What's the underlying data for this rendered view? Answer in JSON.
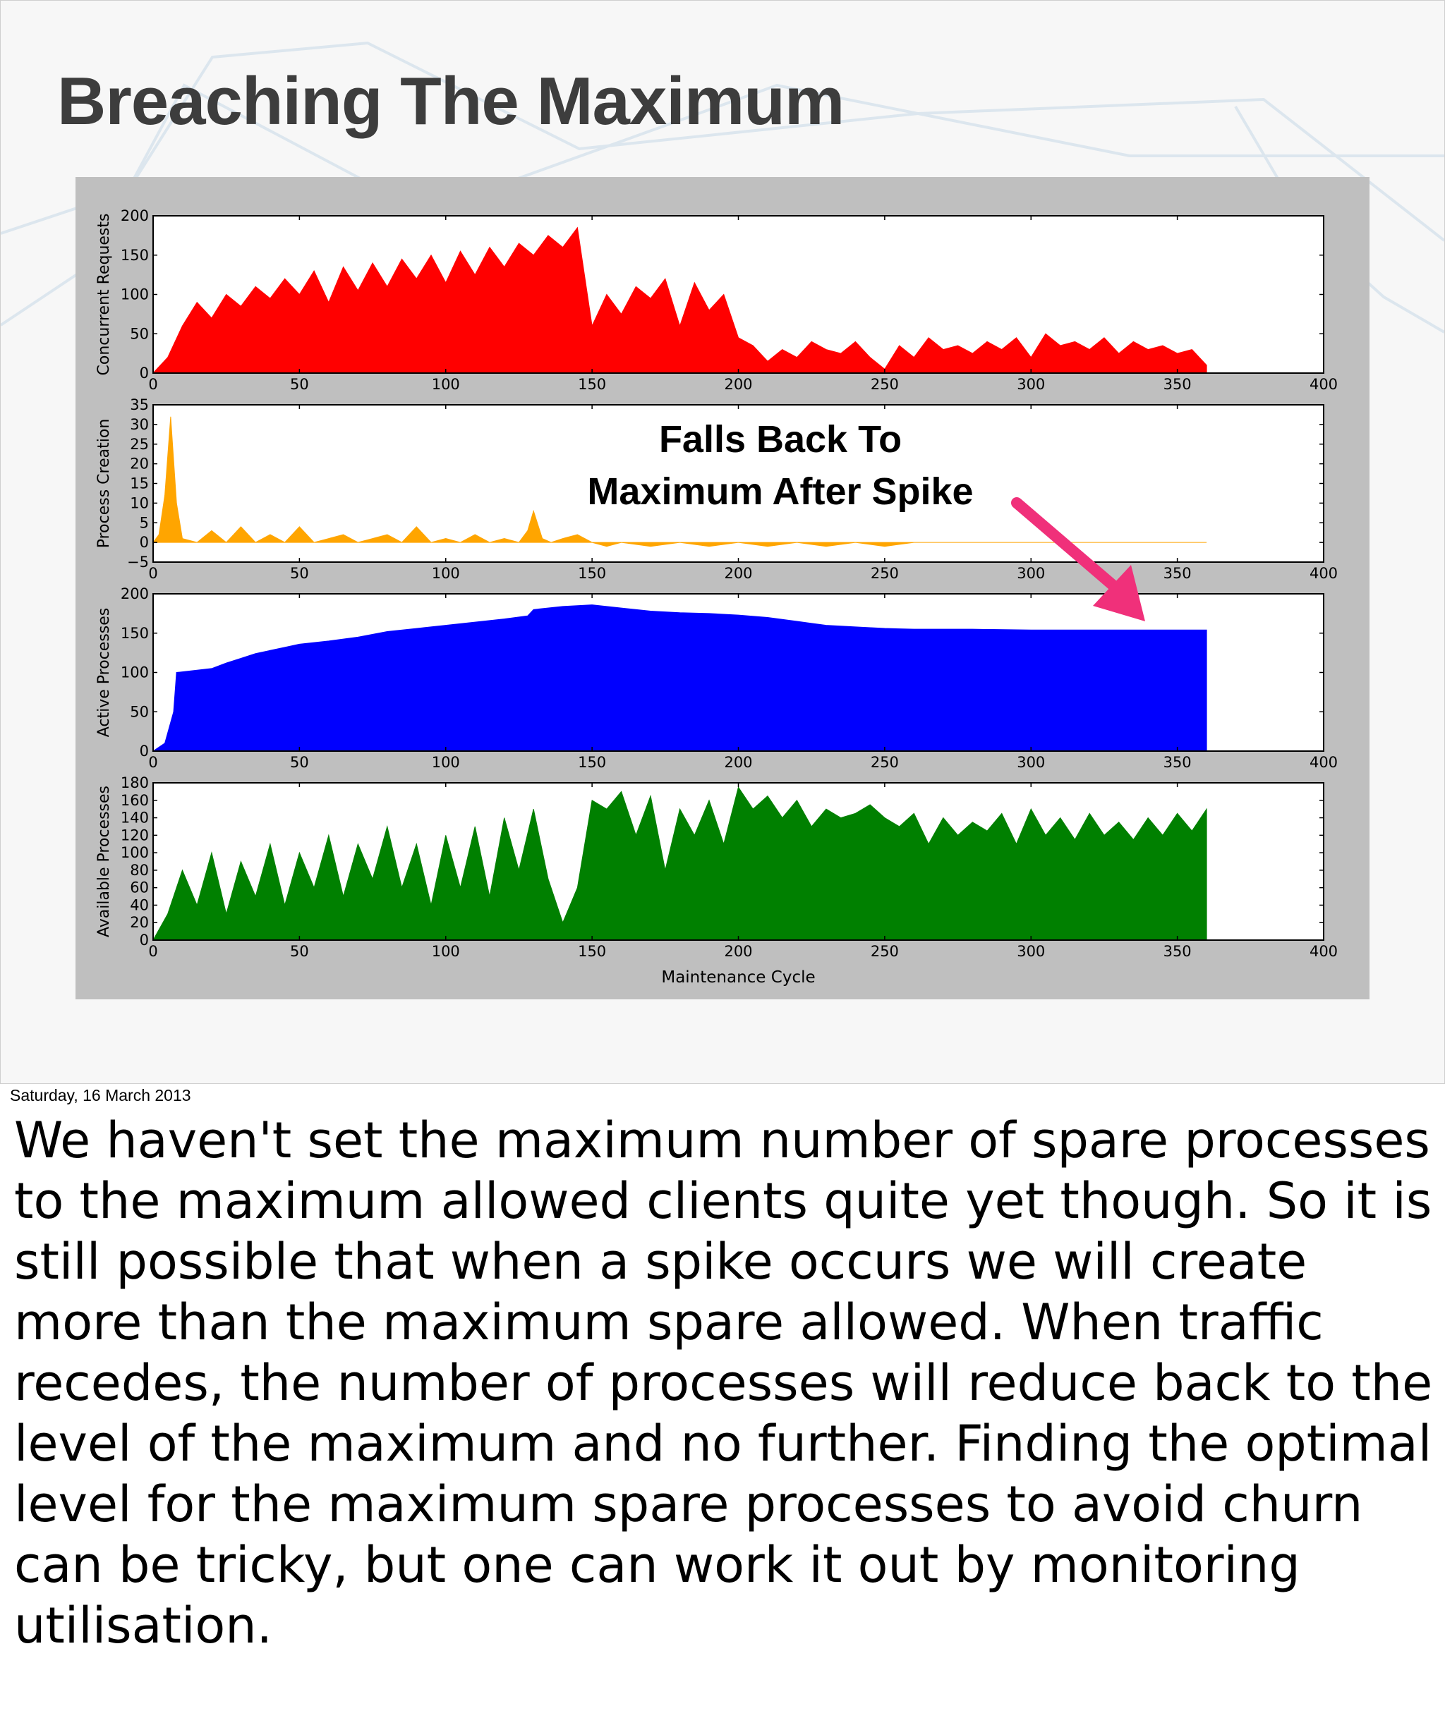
{
  "slide": {
    "title": "Breaching The Maximum",
    "callout_lines": [
      "Falls Back To",
      "Maximum After Spike"
    ],
    "arrow_color": "#f0307a"
  },
  "date_label": "Saturday, 16 March 2013",
  "notes": "We haven't set the maximum number of spare processes to the maximum allowed clients quite yet though. So it is still possible that when a spike occurs we will create more than the maximum spare allowed. When traffic recedes, the number of processes will reduce back to the level of the maximum and no further. Finding the optimal level for the maximum spare processes to avoid churn can be tricky, but one can work it out by monitoring utilisation.",
  "chart_data": [
    {
      "type": "area",
      "ylabel": "Concurrent Requests",
      "color": "#ff0000",
      "xlim": [
        0,
        400
      ],
      "ylim": [
        0,
        200
      ],
      "xticks": [
        "0",
        "50",
        "100",
        "150",
        "200",
        "250",
        "300",
        "350",
        "400"
      ],
      "yticks": [
        "0",
        "50",
        "100",
        "150",
        "200"
      ],
      "x": [
        0,
        5,
        10,
        15,
        20,
        25,
        30,
        35,
        40,
        45,
        50,
        55,
        60,
        65,
        70,
        75,
        80,
        85,
        90,
        95,
        100,
        105,
        110,
        115,
        120,
        125,
        130,
        135,
        140,
        145,
        150,
        155,
        160,
        165,
        170,
        175,
        180,
        185,
        190,
        195,
        200,
        205,
        210,
        215,
        220,
        225,
        230,
        235,
        240,
        245,
        250,
        255,
        260,
        265,
        270,
        275,
        280,
        285,
        290,
        295,
        300,
        305,
        310,
        315,
        320,
        325,
        330,
        335,
        340,
        345,
        350,
        355,
        360
      ],
      "y": [
        0,
        20,
        60,
        90,
        70,
        100,
        85,
        110,
        95,
        120,
        100,
        130,
        90,
        135,
        105,
        140,
        110,
        145,
        120,
        150,
        115,
        155,
        125,
        160,
        135,
        165,
        150,
        175,
        160,
        185,
        60,
        100,
        75,
        110,
        95,
        120,
        60,
        115,
        80,
        100,
        45,
        35,
        15,
        30,
        20,
        40,
        30,
        25,
        40,
        20,
        5,
        35,
        20,
        45,
        30,
        35,
        25,
        40,
        30,
        45,
        20,
        50,
        35,
        40,
        30,
        45,
        25,
        40,
        30,
        35,
        25,
        30,
        10
      ]
    },
    {
      "type": "area",
      "ylabel": "Process Creation",
      "color": "#ffa500",
      "xlim": [
        0,
        400
      ],
      "ylim": [
        -5,
        35
      ],
      "xticks": [
        "0",
        "50",
        "100",
        "150",
        "200",
        "250",
        "300",
        "350",
        "400"
      ],
      "yticks": [
        "−5",
        "0",
        "5",
        "10",
        "15",
        "20",
        "25",
        "30",
        "35"
      ],
      "x": [
        0,
        2,
        4,
        6,
        8,
        10,
        15,
        20,
        25,
        30,
        35,
        40,
        45,
        50,
        55,
        60,
        65,
        70,
        75,
        80,
        85,
        90,
        95,
        100,
        105,
        110,
        115,
        120,
        125,
        128,
        130,
        133,
        136,
        140,
        145,
        150,
        155,
        160,
        170,
        180,
        190,
        200,
        210,
        220,
        230,
        240,
        250,
        260,
        300,
        340,
        360
      ],
      "y": [
        0,
        2,
        12,
        32,
        10,
        1,
        0,
        3,
        0,
        4,
        0,
        2,
        0,
        4,
        0,
        1,
        2,
        0,
        1,
        2,
        0,
        4,
        0,
        1,
        0,
        2,
        0,
        1,
        0,
        3,
        8,
        1,
        0,
        1,
        2,
        0,
        -1,
        0,
        -1,
        0,
        -1,
        0,
        -1,
        0,
        -1,
        0,
        -1,
        0,
        0,
        0,
        0
      ]
    },
    {
      "type": "area",
      "ylabel": "Active Processes",
      "color": "#0000ff",
      "xlim": [
        0,
        400
      ],
      "ylim": [
        0,
        200
      ],
      "xticks": [
        "0",
        "50",
        "100",
        "150",
        "200",
        "250",
        "300",
        "350",
        "400"
      ],
      "yticks": [
        "0",
        "50",
        "100",
        "150",
        "200"
      ],
      "x": [
        0,
        4,
        7,
        8,
        20,
        25,
        30,
        35,
        40,
        45,
        50,
        60,
        70,
        80,
        90,
        100,
        110,
        120,
        128,
        130,
        140,
        150,
        160,
        170,
        180,
        190,
        200,
        210,
        220,
        230,
        240,
        250,
        260,
        280,
        300,
        320,
        340,
        360
      ],
      "y": [
        0,
        10,
        50,
        100,
        105,
        112,
        118,
        124,
        128,
        132,
        136,
        140,
        145,
        152,
        156,
        160,
        164,
        168,
        172,
        180,
        184,
        186,
        182,
        178,
        176,
        175,
        173,
        170,
        165,
        160,
        158,
        156,
        155,
        155,
        154,
        154,
        154,
        154
      ]
    },
    {
      "type": "area",
      "ylabel": "Available Processes",
      "xlabel": "Maintenance Cycle",
      "color": "#008000",
      "xlim": [
        0,
        400
      ],
      "ylim": [
        0,
        180
      ],
      "xticks": [
        "0",
        "50",
        "100",
        "150",
        "200",
        "250",
        "300",
        "350",
        "400"
      ],
      "yticks": [
        "0",
        "20",
        "40",
        "60",
        "80",
        "100",
        "120",
        "140",
        "160",
        "180"
      ],
      "x": [
        0,
        5,
        10,
        15,
        20,
        25,
        30,
        35,
        40,
        45,
        50,
        55,
        60,
        65,
        70,
        75,
        80,
        85,
        90,
        95,
        100,
        105,
        110,
        115,
        120,
        125,
        130,
        135,
        140,
        145,
        150,
        155,
        160,
        165,
        170,
        175,
        180,
        185,
        190,
        195,
        200,
        205,
        210,
        215,
        220,
        225,
        230,
        235,
        240,
        245,
        250,
        255,
        260,
        265,
        270,
        275,
        280,
        285,
        290,
        295,
        300,
        305,
        310,
        315,
        320,
        325,
        330,
        335,
        340,
        345,
        350,
        355,
        360
      ],
      "y": [
        0,
        30,
        80,
        40,
        100,
        30,
        90,
        50,
        110,
        40,
        100,
        60,
        120,
        50,
        110,
        70,
        130,
        60,
        110,
        40,
        120,
        60,
        130,
        50,
        140,
        80,
        150,
        70,
        20,
        60,
        160,
        150,
        170,
        120,
        165,
        80,
        150,
        120,
        160,
        110,
        175,
        150,
        165,
        140,
        160,
        130,
        150,
        140,
        145,
        155,
        140,
        130,
        145,
        110,
        140,
        120,
        135,
        125,
        145,
        110,
        150,
        120,
        140,
        115,
        145,
        120,
        135,
        115,
        140,
        120,
        145,
        125,
        150
      ]
    }
  ]
}
